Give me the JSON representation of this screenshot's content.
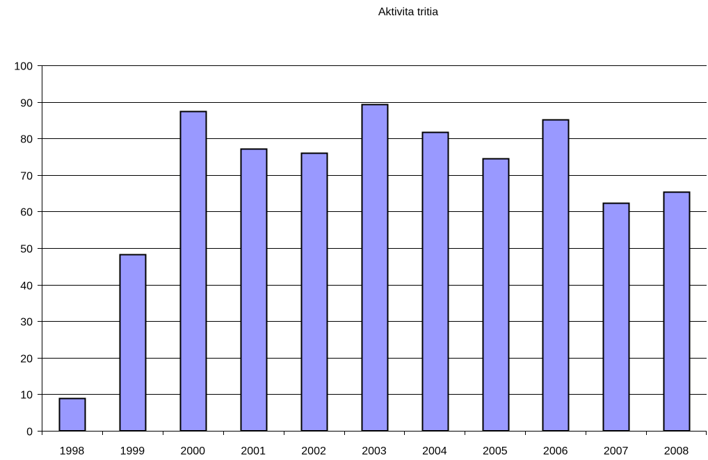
{
  "chart_data": {
    "type": "bar",
    "title": "Aktivita tritia",
    "xlabel": "",
    "ylabel": "",
    "categories": [
      "1998",
      "1999",
      "2000",
      "2001",
      "2002",
      "2003",
      "2004",
      "2005",
      "2006",
      "2007",
      "2008"
    ],
    "values": [
      9,
      48.3,
      87.5,
      77.2,
      76,
      89.4,
      81.8,
      74.5,
      85.2,
      62.3,
      65.4
    ],
    "ylim": [
      0,
      100
    ],
    "yticks": [
      "0",
      "10",
      "20",
      "30",
      "40",
      "50",
      "60",
      "70",
      "80",
      "90",
      "100"
    ],
    "grid": true,
    "legend": "none",
    "bar_color": "#9999ff",
    "bar_edge_color": "#000000",
    "gridline_color": "#000000",
    "background_color": "#ffffff"
  }
}
